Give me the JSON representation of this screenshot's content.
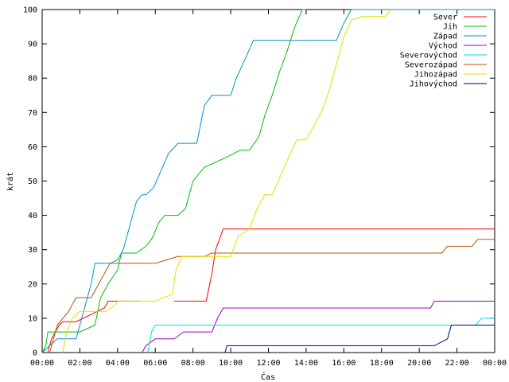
{
  "chart_data": {
    "type": "line",
    "xlabel": "Čas",
    "ylabel": "krát",
    "xlim": [
      0,
      24
    ],
    "ylim": [
      0,
      100
    ],
    "x_ticks": [
      {
        "v": 0,
        "label": "00:00"
      },
      {
        "v": 2,
        "label": "02:00"
      },
      {
        "v": 4,
        "label": "04:00"
      },
      {
        "v": 6,
        "label": "06:00"
      },
      {
        "v": 8,
        "label": "08:00"
      },
      {
        "v": 10,
        "label": "10:00"
      },
      {
        "v": 12,
        "label": "12:00"
      },
      {
        "v": 14,
        "label": "14:00"
      },
      {
        "v": 16,
        "label": "16:00"
      },
      {
        "v": 18,
        "label": "18:00"
      },
      {
        "v": 20,
        "label": "20:00"
      },
      {
        "v": 22,
        "label": "22:00"
      },
      {
        "v": 24,
        "label": "00:00"
      }
    ],
    "y_ticks": [
      {
        "v": 0,
        "label": "0"
      },
      {
        "v": 10,
        "label": "10"
      },
      {
        "v": 20,
        "label": "20"
      },
      {
        "v": 30,
        "label": "30"
      },
      {
        "v": 40,
        "label": "40"
      },
      {
        "v": 50,
        "label": "50"
      },
      {
        "v": 60,
        "label": "60"
      },
      {
        "v": 70,
        "label": "70"
      },
      {
        "v": 80,
        "label": "80"
      },
      {
        "v": 90,
        "label": "90"
      },
      {
        "v": 100,
        "label": "100"
      }
    ],
    "grid": false,
    "legend_position": "top-right",
    "series": [
      {
        "name": "Sever",
        "color": "#ff0000",
        "x": [
          0.3,
          0.5,
          0.7,
          0.9,
          1.1,
          1.4,
          1.8,
          3.3,
          3.5,
          4.0,
          5.2,
          6.0,
          7.0,
          8.7,
          9.0,
          9.2,
          9.6,
          10.5,
          12.0,
          14.0,
          16.0,
          18.0,
          20.0,
          22.0,
          24.0
        ],
        "y": [
          0,
          4,
          6,
          8,
          9,
          9,
          9,
          13,
          15,
          15,
          15,
          null,
          15,
          15,
          23,
          30,
          36,
          36,
          36,
          36,
          36,
          36,
          36,
          36,
          36
        ]
      },
      {
        "name": "Jih",
        "color": "#00c000",
        "x": [
          0.0,
          0.2,
          0.3,
          1.0,
          2.0,
          2.8,
          3.1,
          3.5,
          4.0,
          4.2,
          5.0,
          5.5,
          5.8,
          6.2,
          6.5,
          7.2,
          7.6,
          8.0,
          8.6,
          9.8,
          10.5,
          11.0,
          11.5,
          11.8,
          12.2,
          12.6,
          13.0,
          13.4,
          13.8,
          14.0
        ],
        "y": [
          0,
          2,
          6,
          6,
          6,
          8,
          16,
          20,
          24,
          29,
          29,
          31,
          33,
          38,
          40,
          40,
          42,
          50,
          54,
          57,
          59,
          59,
          63,
          69,
          75,
          82,
          88,
          95,
          100,
          100
        ]
      },
      {
        "name": "Západ",
        "color": "#0090d0",
        "x": [
          0.0,
          0.4,
          0.8,
          1.8,
          2.3,
          2.6,
          2.8,
          3.6,
          4.0,
          4.3,
          4.6,
          5.0,
          5.3,
          5.5,
          5.9,
          6.3,
          6.7,
          7.2,
          8.2,
          8.6,
          9.0,
          10.0,
          10.3,
          10.8,
          11.2,
          15.6,
          16.0,
          16.4,
          24.0
        ],
        "y": [
          0,
          2,
          4,
          4,
          14,
          20,
          26,
          26,
          27,
          30,
          36,
          44,
          46,
          46,
          48,
          53,
          58,
          61,
          61,
          72,
          75,
          75,
          80,
          86,
          91,
          91,
          96,
          100,
          100
        ]
      },
      {
        "name": "Východ",
        "color": "#a000c0",
        "x": [
          5.3,
          5.5,
          6.0,
          7.0,
          7.5,
          8.0,
          9.0,
          9.3,
          9.6,
          12.0,
          16.0,
          20.6,
          20.8,
          22.0,
          24.0
        ],
        "y": [
          0,
          2,
          4,
          4,
          6,
          6,
          6,
          10,
          13,
          13,
          13,
          13,
          15,
          15,
          15
        ]
      },
      {
        "name": "Severovýchod",
        "color": "#00e0e0",
        "x": [
          5.6,
          5.8,
          6.0,
          7.0,
          8.0,
          10.0,
          12.0,
          16.0,
          20.0,
          22.0,
          23.0,
          23.3,
          24.0
        ],
        "y": [
          0,
          6,
          8,
          8,
          8,
          8,
          8,
          8,
          8,
          8,
          8,
          10,
          10
        ]
      },
      {
        "name": "Severozápad",
        "color": "#c05000",
        "x": [
          0.4,
          0.6,
          0.8,
          1.4,
          1.8,
          2.2,
          2.6,
          3.0,
          3.6,
          4.0,
          6.0,
          7.2,
          8.0,
          8.6,
          9.0,
          10.0,
          12.0,
          16.0,
          20.0,
          21.2,
          21.5,
          22.0,
          22.8,
          23.1,
          24.0
        ],
        "y": [
          0,
          4,
          8,
          12,
          16,
          16,
          16,
          20,
          26,
          26,
          26,
          28,
          28,
          28,
          29,
          29,
          29,
          29,
          29,
          29,
          31,
          31,
          31,
          33,
          33
        ]
      },
      {
        "name": "Jihozápad",
        "color": "#e0e000",
        "x": [
          1.1,
          1.3,
          1.6,
          2.0,
          3.4,
          3.9,
          4.0,
          6.0,
          6.9,
          7.1,
          7.4,
          8.0,
          9.0,
          10.0,
          10.4,
          11.0,
          11.4,
          11.8,
          12.2,
          12.6,
          13.0,
          13.5,
          14.0,
          14.4,
          14.8,
          15.2,
          15.6,
          16.0,
          16.4,
          17.0,
          18.2,
          18.5
        ],
        "y": [
          0,
          6,
          10,
          12,
          12,
          14,
          15,
          15,
          17,
          24,
          28,
          28,
          28,
          28,
          34,
          36,
          42,
          46,
          46,
          51,
          56,
          62,
          62,
          66,
          70,
          76,
          84,
          92,
          97,
          98,
          98,
          100
        ]
      },
      {
        "name": "Jihovýchod",
        "color": "#000080",
        "x": [
          9.7,
          9.8,
          12.0,
          16.0,
          20.0,
          20.8,
          21.5,
          21.7,
          22.0,
          24.0
        ],
        "y": [
          0,
          2,
          2,
          2,
          2,
          2,
          4,
          8,
          8,
          8
        ]
      }
    ]
  }
}
